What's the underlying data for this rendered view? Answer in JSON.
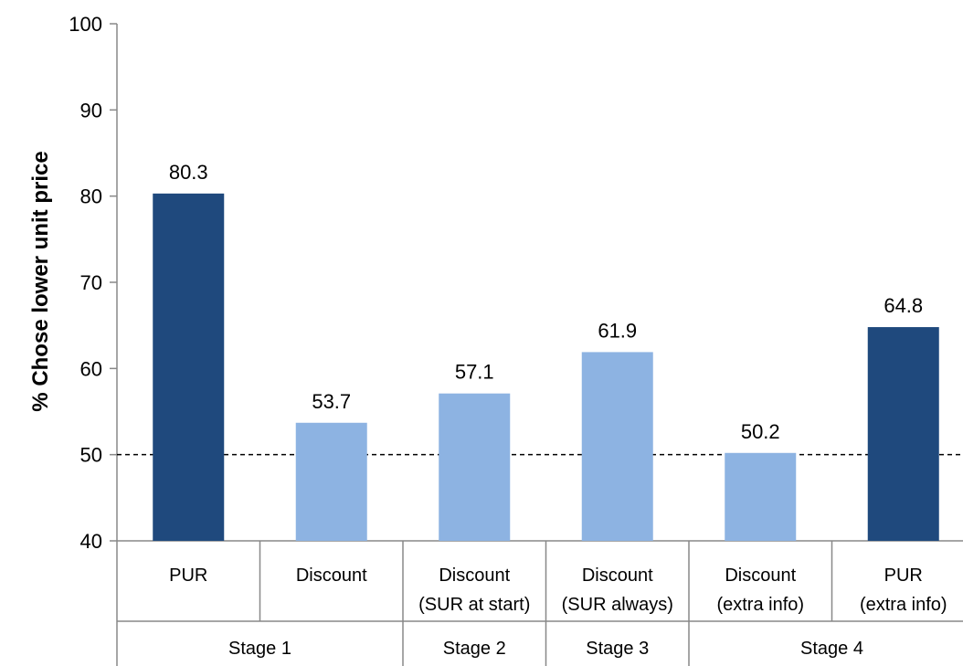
{
  "chart_data": {
    "type": "bar",
    "ylabel": "% Chose lower unit price",
    "ylim": [
      40,
      100
    ],
    "yticks": [
      40,
      50,
      60,
      70,
      80,
      90,
      100
    ],
    "reference_line": 50,
    "categories": [
      {
        "line1": "PUR",
        "line2": ""
      },
      {
        "line1": "Discount",
        "line2": ""
      },
      {
        "line1": "Discount",
        "line2": "(SUR at start)"
      },
      {
        "line1": "Discount",
        "line2": "(SUR always)"
      },
      {
        "line1": "Discount",
        "line2": "(extra info)"
      },
      {
        "line1": "PUR",
        "line2": "(extra info)"
      }
    ],
    "values": [
      80.3,
      53.7,
      57.1,
      61.9,
      50.2,
      64.8
    ],
    "value_labels": [
      "80.3",
      "53.7",
      "57.1",
      "61.9",
      "50.2",
      "64.8"
    ],
    "bar_colors": [
      "#1f497d",
      "#8db3e2",
      "#8db3e2",
      "#8db3e2",
      "#8db3e2",
      "#1f497d"
    ],
    "groups": [
      {
        "label": "Stage 1",
        "start": 0,
        "end": 1
      },
      {
        "label": "Stage 2",
        "start": 2,
        "end": 2
      },
      {
        "label": "Stage  3",
        "start": 3,
        "end": 3
      },
      {
        "label": "Stage 4",
        "start": 4,
        "end": 5
      }
    ]
  }
}
